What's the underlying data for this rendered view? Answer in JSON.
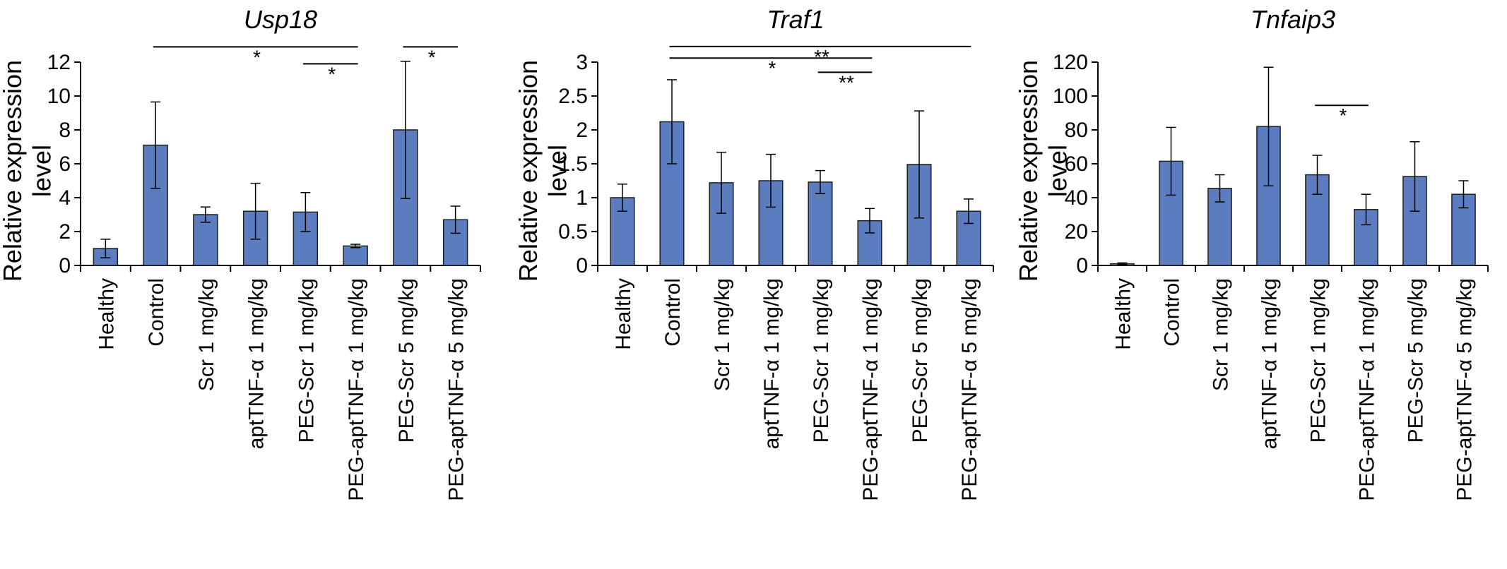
{
  "figure": {
    "bar_color": "#5B7DBF",
    "bar_edge_color": "#1F1F1F"
  },
  "chart_data": [
    {
      "type": "bar",
      "title": "Usp18",
      "ylabel": "Relative expression level",
      "ylabel_lines": [
        "Relative expression",
        "level"
      ],
      "ylim": [
        0,
        12
      ],
      "yticks": [
        0,
        2,
        4,
        6,
        8,
        10,
        12
      ],
      "ytick_labels": [
        "0",
        "2",
        "4",
        "6",
        "8",
        "10",
        "12"
      ],
      "categories": [
        "Healthy",
        "Control",
        "Scr 1 mg/kg",
        "aptTNF-α 1 mg/kg",
        "PEG-Scr 1 mg/kg",
        "PEG-aptTNF-α 1 mg/kg",
        "PEG-Scr 5 mg/kg",
        "PEG-aptTNF-α 5 mg/kg"
      ],
      "values": [
        1.0,
        7.1,
        3.0,
        3.2,
        3.15,
        1.15,
        8.0,
        2.7
      ],
      "errors": [
        0.55,
        2.55,
        0.45,
        1.65,
        1.15,
        0.1,
        4.05,
        0.8
      ],
      "significance": [
        {
          "from": 1,
          "to": 5,
          "y": 12.9,
          "label": "*"
        },
        {
          "from": 4,
          "to": 5,
          "y": 11.9,
          "label": "*"
        },
        {
          "from": 6,
          "to": 7,
          "y": 12.9,
          "label": "*"
        }
      ]
    },
    {
      "type": "bar",
      "title": "Traf1",
      "ylabel": "Relative expression level",
      "ylabel_lines": [
        "Relative expression",
        "level"
      ],
      "ylim": [
        0,
        3
      ],
      "yticks": [
        0,
        0.5,
        1,
        1.5,
        2,
        2.5,
        3
      ],
      "ytick_labels": [
        "0",
        "0.5",
        "1",
        "1.5",
        "2",
        "2.5",
        "3"
      ],
      "categories": [
        "Healthy",
        "Control",
        "Scr 1 mg/kg",
        "aptTNF-α 1 mg/kg",
        "PEG-Scr 1 mg/kg",
        "PEG-aptTNF-α 1 mg/kg",
        "PEG-Scr 5 mg/kg",
        "PEG-aptTNF-α 5 mg/kg"
      ],
      "values": [
        1.0,
        2.12,
        1.22,
        1.25,
        1.23,
        0.66,
        1.49,
        0.8
      ],
      "errors": [
        0.2,
        0.62,
        0.45,
        0.39,
        0.17,
        0.18,
        0.79,
        0.18
      ],
      "significance": [
        {
          "from": 1,
          "to": 7,
          "y": 3.23,
          "label": "**"
        },
        {
          "from": 1,
          "to": 5,
          "y": 3.06,
          "label": "*"
        },
        {
          "from": 4,
          "to": 5,
          "y": 2.85,
          "label": "**"
        }
      ]
    },
    {
      "type": "bar",
      "title": "Tnfaip3",
      "ylabel": "Relative expression level",
      "ylabel_lines": [
        "Relative expression",
        "level"
      ],
      "ylim": [
        0,
        120
      ],
      "yticks": [
        0,
        20,
        40,
        60,
        80,
        100,
        120
      ],
      "ytick_labels": [
        "0",
        "20",
        "40",
        "60",
        "80",
        "100",
        "120"
      ],
      "categories": [
        "Healthy",
        "Control",
        "Scr 1 mg/kg",
        "aptTNF-α 1 mg/kg",
        "PEG-Scr 1 mg/kg",
        "PEG-aptTNF-α 1 mg/kg",
        "PEG-Scr 5 mg/kg",
        "PEG-aptTNF-α 5 mg/kg"
      ],
      "values": [
        1.0,
        61.5,
        45.5,
        82.0,
        53.5,
        33.0,
        52.5,
        42.0
      ],
      "errors": [
        0.5,
        20.0,
        8.0,
        35.0,
        11.5,
        9.0,
        20.5,
        8.0
      ],
      "significance": [
        {
          "from": 4,
          "to": 5,
          "y": 94.5,
          "label": "*"
        }
      ]
    }
  ]
}
